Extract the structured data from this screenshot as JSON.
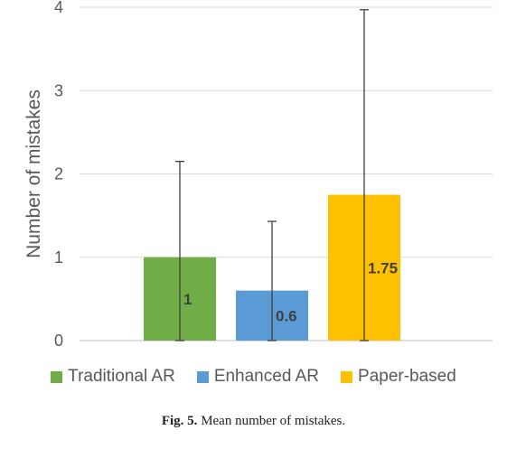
{
  "chart_data": {
    "type": "bar",
    "categories": [
      "Traditional AR",
      "Enhanced AR",
      "Paper-based"
    ],
    "values": [
      1,
      0.6,
      1.75
    ],
    "data_labels": [
      "1",
      "0.6",
      "1.75"
    ],
    "error_upper": [
      2.15,
      1.43,
      3.97
    ],
    "error_lower": [
      0,
      0,
      0
    ],
    "colors": [
      "#70AD47",
      "#5B9BD5",
      "#FFC000"
    ],
    "ylabel": "Number of mistakes",
    "ylim": [
      0,
      4
    ],
    "yticks": [
      "0",
      "1",
      "2",
      "3",
      "4"
    ],
    "grid": true,
    "legend_position": "bottom"
  },
  "caption": {
    "label": "Fig. 5.",
    "text": "Mean number of mistakes."
  }
}
